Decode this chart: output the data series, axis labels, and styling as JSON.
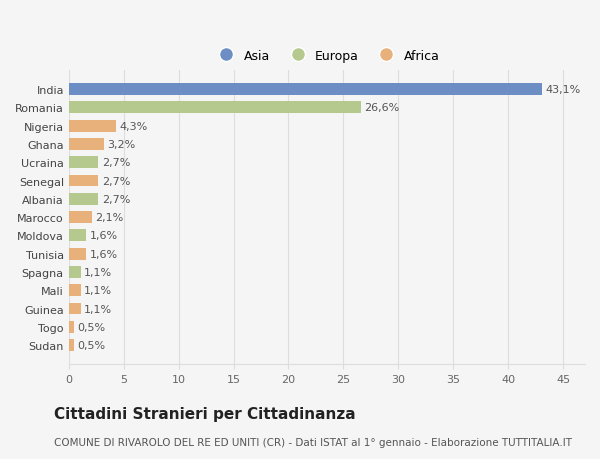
{
  "categories": [
    "Sudan",
    "Togo",
    "Guinea",
    "Mali",
    "Spagna",
    "Tunisia",
    "Moldova",
    "Marocco",
    "Albania",
    "Senegal",
    "Ucraina",
    "Ghana",
    "Nigeria",
    "Romania",
    "India"
  ],
  "values": [
    0.5,
    0.5,
    1.1,
    1.1,
    1.1,
    1.6,
    1.6,
    2.1,
    2.7,
    2.7,
    2.7,
    3.2,
    4.3,
    26.6,
    43.1
  ],
  "labels": [
    "0,5%",
    "0,5%",
    "1,1%",
    "1,1%",
    "1,1%",
    "1,6%",
    "1,6%",
    "2,1%",
    "2,7%",
    "2,7%",
    "2,7%",
    "3,2%",
    "4,3%",
    "26,6%",
    "43,1%"
  ],
  "continents": [
    "Africa",
    "Africa",
    "Africa",
    "Africa",
    "Europa",
    "Africa",
    "Europa",
    "Africa",
    "Europa",
    "Africa",
    "Europa",
    "Africa",
    "Africa",
    "Europa",
    "Asia"
  ],
  "colors": {
    "Asia": "#6d8dc5",
    "Europa": "#b5c98e",
    "Africa": "#e8b07a"
  },
  "xlim": [
    0,
    47
  ],
  "xticks": [
    0,
    5,
    10,
    15,
    20,
    25,
    30,
    35,
    40,
    45
  ],
  "title": "Cittadini Stranieri per Cittadinanza",
  "subtitle": "COMUNE DI RIVAROLO DEL RE ED UNITI (CR) - Dati ISTAT al 1° gennaio - Elaborazione TUTTITALIA.IT",
  "background_color": "#f5f5f5",
  "grid_color": "#dddddd",
  "title_fontsize": 11,
  "subtitle_fontsize": 7.5,
  "label_fontsize": 8,
  "tick_fontsize": 8,
  "legend_fontsize": 9
}
